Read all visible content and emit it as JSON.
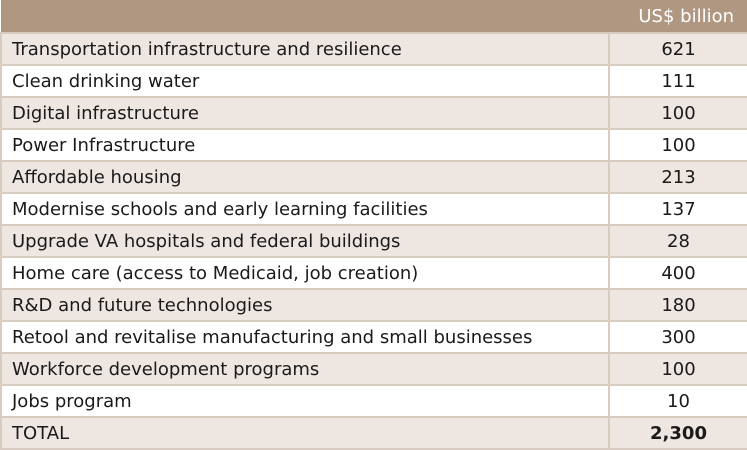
{
  "header": {
    "value_column": "US$ billion"
  },
  "rows": [
    {
      "label": "Transportation infrastructure and resilience",
      "value": "621"
    },
    {
      "label": "Clean drinking water",
      "value": "111"
    },
    {
      "label": "Digital infrastructure",
      "value": "100"
    },
    {
      "label": "Power Infrastructure",
      "value": "100"
    },
    {
      "label": "Affordable housing",
      "value": "213"
    },
    {
      "label": "Modernise schools and early learning facilities",
      "value": "137"
    },
    {
      "label": "Upgrade VA hospitals and federal buildings",
      "value": "28"
    },
    {
      "label": "Home care (access to Medicaid, job creation)",
      "value": "400"
    },
    {
      "label": "R&D and future technologies",
      "value": "180"
    },
    {
      "label": "Retool and revitalise manufacturing and small businesses",
      "value": "300"
    },
    {
      "label": "Workforce development programs",
      "value": "100"
    },
    {
      "label": "Jobs program",
      "value": "10"
    }
  ],
  "total": {
    "label": "TOTAL",
    "value": "2,300"
  },
  "colors": {
    "header_bg": "#b09782",
    "shaded_row": "#ede6e1",
    "border": "#d8cbc0"
  }
}
